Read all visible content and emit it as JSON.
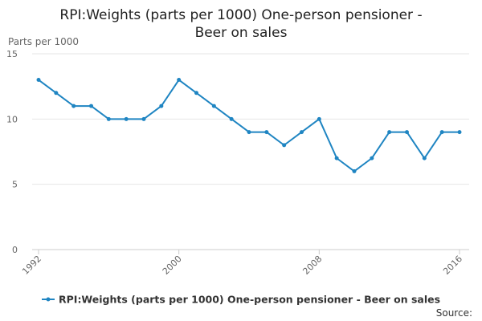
{
  "colors": {
    "series": "#1f85c2",
    "grid": "#e6e6e6",
    "axis": "#cccccc"
  },
  "chart_data": {
    "type": "line",
    "title": "RPI:Weights (parts per 1000) One-person pensioner - Beer on sales",
    "ylabel": "Parts per 1000",
    "xlabel": "",
    "ylim": [
      0,
      15
    ],
    "yticks": [
      0,
      5,
      10,
      15
    ],
    "xticks": [
      1992,
      2000,
      2008,
      2016
    ],
    "grid": true,
    "legend_position": "bottom",
    "source_label": "Source:",
    "x": [
      1992,
      1993,
      1994,
      1995,
      1996,
      1997,
      1998,
      1999,
      2000,
      2001,
      2002,
      2003,
      2004,
      2005,
      2006,
      2007,
      2008,
      2009,
      2010,
      2011,
      2012,
      2013,
      2014,
      2015,
      2016
    ],
    "series": [
      {
        "name": "RPI:Weights (parts per 1000) One-person pensioner - Beer on sales",
        "values": [
          13,
          12,
          11,
          11,
          10,
          10,
          10,
          11,
          13,
          12,
          11,
          10,
          9,
          9,
          8,
          9,
          10,
          7,
          6,
          7,
          9,
          9,
          7,
          9,
          9
        ]
      }
    ]
  }
}
